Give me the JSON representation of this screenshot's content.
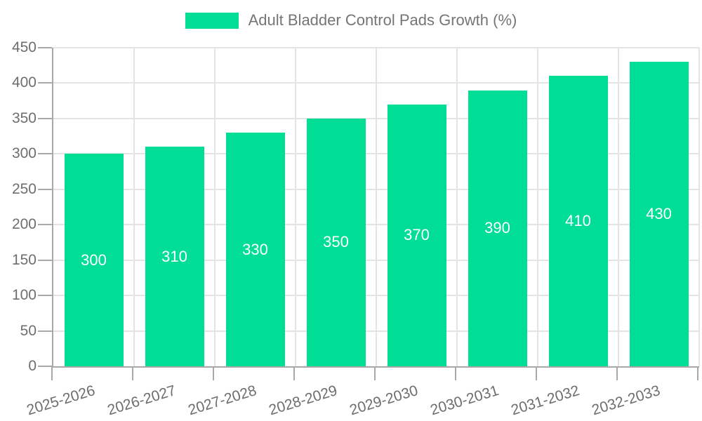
{
  "legend": {
    "label": "Adult Bladder Control Pads Growth (%)"
  },
  "chart_data": {
    "type": "bar",
    "title": "Adult Bladder Control Pads Growth (%)",
    "series_name": "Adult Bladder Control Pads Growth (%)",
    "categories": [
      "2025-2026",
      "2026-2027",
      "2027-2028",
      "2028-2029",
      "2029-2030",
      "2030-2031",
      "2031-2032",
      "2032-2033"
    ],
    "values": [
      300,
      310,
      330,
      350,
      370,
      390,
      410,
      430
    ],
    "xlabel": "",
    "ylabel": "",
    "ylim": [
      0,
      450
    ],
    "yticks": [
      0,
      50,
      100,
      150,
      200,
      250,
      300,
      350,
      400,
      450
    ],
    "grid": true,
    "legend_position": "top",
    "bar_color": "#00DE95",
    "value_label_color": "#FFFFFF",
    "axis_text_color": "#6E6E6E",
    "legend_text_color": "#757575",
    "grid_color": "#E4E4E4",
    "axis_line_color": "#A8A8A8",
    "x_label_rotation_deg": -17
  }
}
